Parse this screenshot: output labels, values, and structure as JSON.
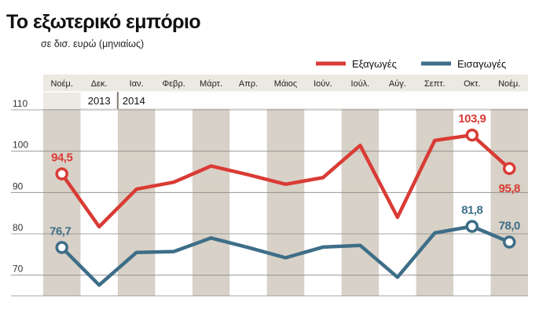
{
  "title": "Το εξωτερικό εμπόριο",
  "subtitle": "σε δισ. ευρώ (μηνιαίως)",
  "colors": {
    "exports": "#d93b35",
    "imports": "#3e6e88",
    "band": "#d8d1c7",
    "header": "#ece8e2"
  },
  "chart_data": {
    "type": "line",
    "categories": [
      "Νοέμ.",
      "Δεκ.",
      "Ιαν.",
      "Φεβρ.",
      "Μάρτ.",
      "Απρ.",
      "Μάιος",
      "Ιούν.",
      "Ιούλ.",
      "Αύγ.",
      "Σεπτ.",
      "Οκτ.",
      "Νοέμ."
    ],
    "years": [
      {
        "label": "2013",
        "start_index": 0
      },
      {
        "label": "2014",
        "start_index": 2
      }
    ],
    "ylim": [
      65,
      110
    ],
    "yticks": [
      70,
      80,
      90,
      100,
      110
    ],
    "grid": true,
    "legend_position": "top-right",
    "series": [
      {
        "name": "Εξαγωγές",
        "color": "#d93b35",
        "values": [
          94.5,
          81.7,
          90.8,
          92.5,
          96.4,
          94.3,
          92.0,
          93.6,
          101.4,
          84.0,
          102.6,
          103.9,
          95.8
        ]
      },
      {
        "name": "Εισαγωγές",
        "color": "#3e6e88",
        "values": [
          76.7,
          67.6,
          75.5,
          75.7,
          79.0,
          76.7,
          74.2,
          76.8,
          77.2,
          69.5,
          80.2,
          81.8,
          78.0
        ]
      }
    ],
    "annotations": [
      {
        "series": 0,
        "index": 0,
        "text": "94,5"
      },
      {
        "series": 0,
        "index": 11,
        "text": "103,9"
      },
      {
        "series": 0,
        "index": 12,
        "text": "95,8"
      },
      {
        "series": 1,
        "index": 0,
        "text": "76,7"
      },
      {
        "series": 1,
        "index": 11,
        "text": "81,8"
      },
      {
        "series": 1,
        "index": 12,
        "text": "78,0"
      }
    ]
  }
}
